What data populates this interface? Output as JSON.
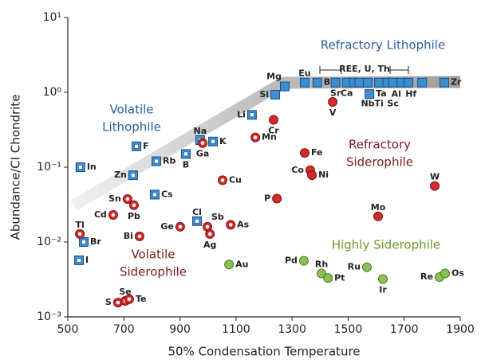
{
  "chart_data": {
    "type": "scatter",
    "xlabel": "50% Condensation Temperature",
    "ylabel": "Abundance/CI Chondrite",
    "xlim": [
      500,
      1900
    ],
    "xticks": [
      500,
      700,
      900,
      1100,
      1300,
      1500,
      1700,
      1900
    ],
    "ylim": [
      0.001,
      10
    ],
    "yscale": "log",
    "yticks": [
      {
        "value": 0.001,
        "label": "10⁻³"
      },
      {
        "value": 0.01,
        "label": "10⁻²"
      },
      {
        "value": 0.1,
        "label": "10⁻¹"
      },
      {
        "value": 1,
        "label": "10⁰"
      },
      {
        "value": 10,
        "label": "10¹"
      }
    ],
    "series": [
      {
        "marker": "square",
        "hollow": true,
        "color": "#3a8fd2",
        "x": [
          545,
          557,
          540,
          745,
          816,
          921,
          733,
          810,
          972,
          1018,
          1157,
          961
        ],
        "values": [
          0.1,
          0.01,
          0.0057,
          0.19,
          0.12,
          0.15,
          0.078,
          0.043,
          0.23,
          0.22,
          0.5,
          0.019
        ],
        "labels": [
          "In",
          "Br",
          "I",
          "F",
          "Rb",
          "B",
          "Zn",
          "Cs",
          "Na",
          "K",
          "Li",
          "Cl"
        ]
      },
      {
        "marker": "square",
        "hollow": false,
        "color": "#3a8fd2",
        "x": [
          1240,
          1274,
          1345,
          1390,
          1455,
          1495,
          1520,
          1540,
          1570,
          1576,
          1610,
          1640,
          1660,
          1690,
          1715,
          1764,
          1843
        ],
        "values": [
          0.93,
          1.2,
          1.35,
          1.35,
          1.35,
          1.35,
          1.35,
          1.35,
          1.35,
          0.95,
          1.35,
          1.35,
          1.35,
          1.35,
          1.35,
          1.35,
          1.35
        ],
        "labels": [
          "Si",
          "Mg",
          "Eu",
          "Be",
          "Sr",
          "Ca",
          null,
          null,
          "Nb",
          "Ta",
          "Ti",
          "Al",
          "Sc",
          "Hf",
          null,
          null,
          "Zr"
        ]
      },
      {
        "marker": "circle",
        "hollow": true,
        "color": "#d42a2a",
        "x": [
          543,
          662,
          713,
          736,
          756,
          901,
          981,
          1169,
          1052,
          998,
          1007,
          1081,
          679,
          705,
          719
        ],
        "values": [
          0.0128,
          0.023,
          0.0375,
          0.031,
          0.0119,
          0.016,
          0.21,
          0.25,
          0.067,
          0.016,
          0.0128,
          0.017,
          0.00155,
          0.00163,
          0.00172
        ],
        "labels": [
          "Tl",
          "Cd",
          "Sn",
          "Pb",
          "Bi",
          "Ge",
          "Ga",
          "Mn",
          "Cu",
          "Sb",
          "Ag",
          "As",
          "S",
          "Se",
          "Te"
        ]
      },
      {
        "marker": "circle",
        "hollow": false,
        "color": "#d42a2a",
        "x": [
          1234,
          1445,
          1345,
          1365,
          1371,
          1246,
          1607,
          1809
        ],
        "values": [
          0.43,
          0.745,
          0.155,
          0.091,
          0.078,
          0.038,
          0.022,
          0.056
        ],
        "labels": [
          "Cr",
          "V",
          "Fe",
          "Co",
          "Ni",
          "P",
          "Mo",
          "W"
        ]
      },
      {
        "marker": "circle",
        "hollow": false,
        "color": "#8cc152",
        "x": [
          1075,
          1342,
          1405,
          1428,
          1567,
          1624,
          1826,
          1846
        ],
        "values": [
          0.005,
          0.0056,
          0.0038,
          0.0033,
          0.0046,
          0.0032,
          0.0034,
          0.0038
        ],
        "labels": [
          "Au",
          "Pd",
          "Rh",
          "Pt",
          "Ru",
          "Ir",
          "Re",
          "Os"
        ]
      }
    ],
    "annotations": [
      {
        "text": [
          "Refractory Lithophile"
        ],
        "color": "#2a5d9f"
      },
      {
        "text": [
          "Volatile",
          "Lithophile"
        ],
        "color": "#2a5d9f"
      },
      {
        "text": [
          "Refractory",
          "Siderophile"
        ],
        "color": "#7a1a1a"
      },
      {
        "text": [
          "Volatile",
          "Siderophile"
        ],
        "color": "#7a1a1a"
      },
      {
        "text": [
          "Highly Siderophile"
        ],
        "color": "#6a9a2a"
      },
      {
        "text": [
          "REE, U, Th"
        ],
        "color": "#222222"
      }
    ]
  }
}
